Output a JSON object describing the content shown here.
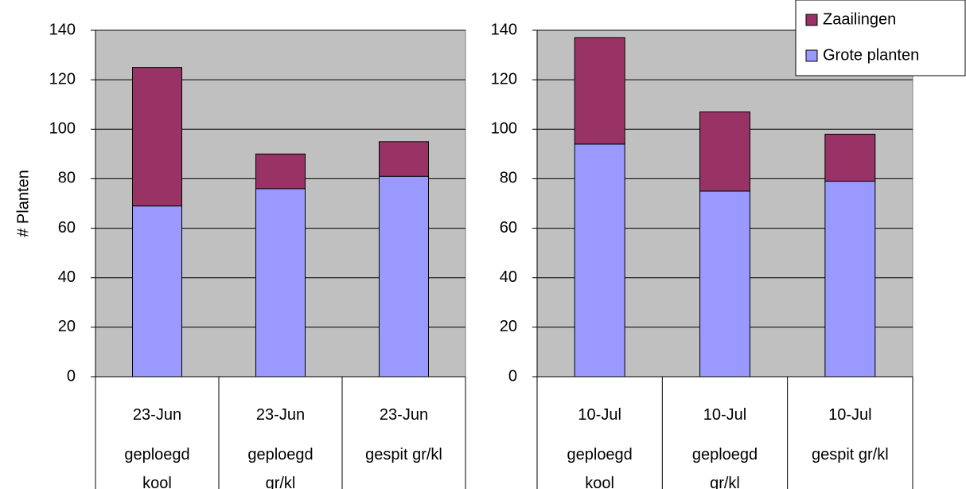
{
  "chart_data": [
    {
      "type": "stacked-bar",
      "y_label": "# Planten",
      "categories": [
        [
          "23-Jun",
          "geploegd kool"
        ],
        [
          "23-Jun",
          "geploegd gr/kl"
        ],
        [
          "23-Jun",
          "gespit gr/kl"
        ]
      ],
      "series": [
        {
          "name": "Grote planten",
          "color": "#9999ff",
          "values": [
            69,
            76,
            81
          ]
        },
        {
          "name": "Zaailingen",
          "color": "#993366",
          "values": [
            56,
            14,
            14
          ]
        }
      ],
      "ylim": [
        0,
        140
      ],
      "yticks": [
        0,
        20,
        40,
        60,
        80,
        100,
        120,
        140
      ],
      "grid": true,
      "legend": false
    },
    {
      "type": "stacked-bar",
      "categories": [
        [
          "10-Jul",
          "geploegd kool"
        ],
        [
          "10-Jul",
          "geploegd gr/kl"
        ],
        [
          "10-Jul",
          "gespit gr/kl"
        ]
      ],
      "series": [
        {
          "name": "Grote planten",
          "color": "#9999ff",
          "values": [
            94,
            75,
            79
          ]
        },
        {
          "name": "Zaailingen",
          "color": "#993366",
          "values": [
            43,
            32,
            19
          ]
        }
      ],
      "ylim": [
        0,
        140
      ],
      "yticks": [
        0,
        20,
        40,
        60,
        80,
        100,
        120,
        140
      ],
      "grid": true,
      "legend": "top-right"
    }
  ]
}
